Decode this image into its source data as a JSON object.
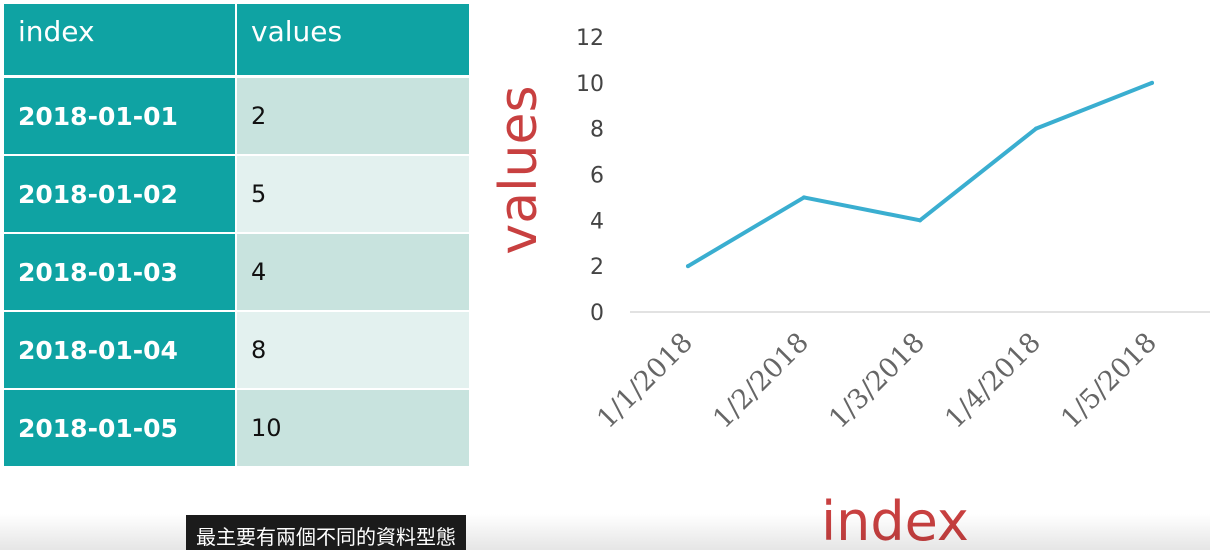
{
  "table": {
    "headers": [
      "index",
      "values"
    ],
    "rows": [
      {
        "index": "2018-01-01",
        "value": "2"
      },
      {
        "index": "2018-01-02",
        "value": "5"
      },
      {
        "index": "2018-01-03",
        "value": "4"
      },
      {
        "index": "2018-01-04",
        "value": "8"
      },
      {
        "index": "2018-01-05",
        "value": "10"
      }
    ]
  },
  "chart_data": {
    "type": "line",
    "x": [
      "1/1/2018",
      "1/2/2018",
      "1/3/2018",
      "1/4/2018",
      "1/5/2018"
    ],
    "series": [
      {
        "values": [
          2,
          5,
          4,
          8,
          10
        ]
      }
    ],
    "yticks": [
      0,
      2,
      4,
      6,
      8,
      10,
      12
    ],
    "ylim": [
      0,
      12
    ],
    "xlabel": "index",
    "ylabel": "values",
    "grid": false,
    "colors": {
      "line": "#3aaed0",
      "axis_title": "#c84040",
      "table_header": "#0fa3a3"
    }
  },
  "caption": {
    "text": "最主要有兩個不同的資料型態"
  }
}
